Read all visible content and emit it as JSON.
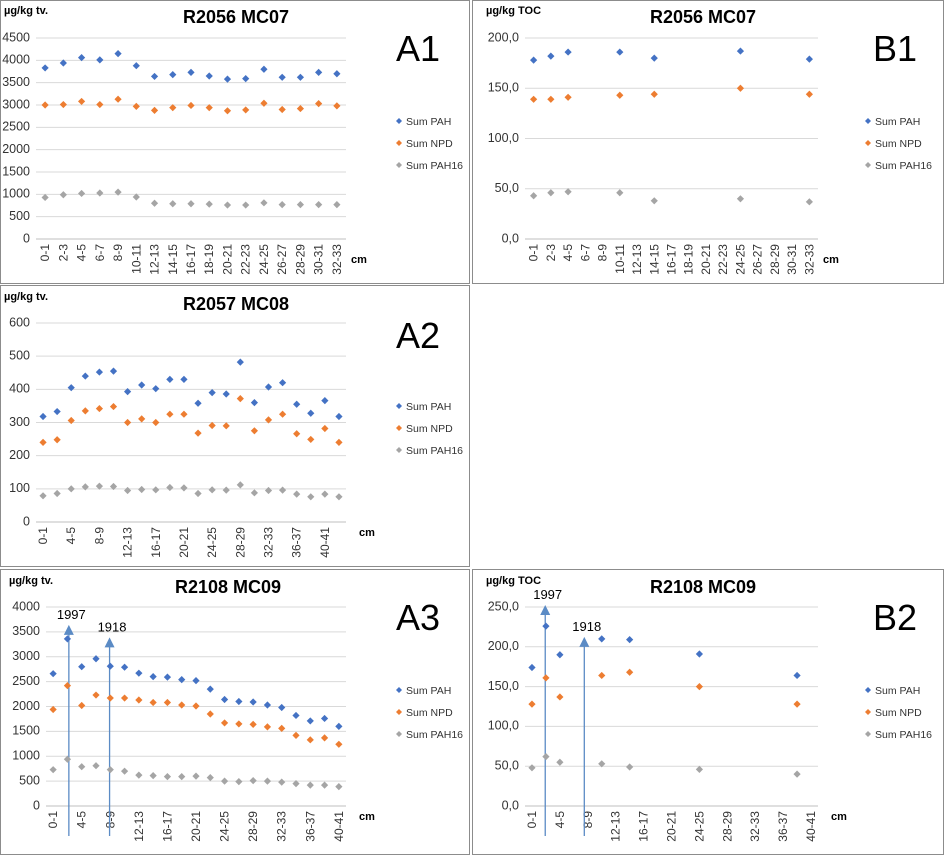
{
  "colors": {
    "pah": "#4472c4",
    "npd": "#ed7d31",
    "pah16": "#a5a5a5",
    "arrow": "#5b8bc5"
  },
  "chart_data": [
    {
      "id": "A1",
      "type": "scatter",
      "panel_label": "A1",
      "title": "R2056 MC07",
      "ylabel": "µg/kg tv.",
      "xlabel": "cm",
      "ylim": [
        0,
        4500
      ],
      "yticks": [
        0,
        500,
        1000,
        1500,
        2000,
        2500,
        3000,
        3500,
        4000,
        4500
      ],
      "x_categories": [
        "0-1",
        "2-3",
        "4-5",
        "6-7",
        "8-9",
        "10-11",
        "12-13",
        "14-15",
        "16-17",
        "18-19",
        "20-21",
        "22-23",
        "24-25",
        "26-27",
        "28-29",
        "30-31",
        "32-33"
      ],
      "x_tick_labels": [
        "0-1",
        "2-3",
        "4-5",
        "6-7",
        "8-9",
        "10-11",
        "12-13",
        "14-15",
        "16-17",
        "18-19",
        "20-21",
        "22-23",
        "24-25",
        "26-27",
        "28-29",
        "30-31",
        "32-33"
      ],
      "series": [
        {
          "name": "Sum PAH",
          "color_key": "pah",
          "values": [
            3830,
            3940,
            4060,
            4010,
            4150,
            3880,
            3640,
            3680,
            3730,
            3650,
            3580,
            3590,
            3800,
            3620,
            3620,
            3730,
            3700
          ]
        },
        {
          "name": "Sum NPD",
          "color_key": "npd",
          "values": [
            3000,
            3010,
            3080,
            3010,
            3130,
            2970,
            2880,
            2940,
            2990,
            2940,
            2870,
            2890,
            3040,
            2900,
            2920,
            3030,
            2980
          ]
        },
        {
          "name": "Sum PAH16",
          "color_key": "pah16",
          "values": [
            930,
            990,
            1020,
            1030,
            1050,
            940,
            800,
            790,
            790,
            780,
            760,
            760,
            810,
            770,
            770,
            770,
            770
          ]
        }
      ]
    },
    {
      "id": "B1",
      "type": "scatter",
      "panel_label": "B1",
      "title": "R2056 MC07",
      "ylabel": "µg/kg TOC",
      "xlabel": "cm",
      "ylim": [
        0,
        200
      ],
      "yticks": [
        0,
        50,
        100,
        150,
        200
      ],
      "ytick_labels": [
        "0,0",
        "50,0",
        "100,0",
        "150,0",
        "200,0"
      ],
      "x_categories": [
        "0-1",
        "2-3",
        "4-5",
        "6-7",
        "8-9",
        "10-11",
        "12-13",
        "14-15",
        "16-17",
        "18-19",
        "20-21",
        "22-23",
        "24-25",
        "26-27",
        "28-29",
        "30-31",
        "32-33"
      ],
      "x_tick_labels": [
        "0-1",
        "2-3",
        "4-5",
        "6-7",
        "8-9",
        "10-11",
        "12-13",
        "14-15",
        "16-17",
        "18-19",
        "20-21",
        "22-23",
        "24-25",
        "26-27",
        "28-29",
        "30-31",
        "32-33"
      ],
      "series": [
        {
          "name": "Sum PAH",
          "color_key": "pah",
          "values": [
            178,
            182,
            186,
            null,
            null,
            186,
            null,
            180,
            null,
            null,
            null,
            null,
            187,
            null,
            null,
            null,
            179
          ]
        },
        {
          "name": "Sum NPD",
          "color_key": "npd",
          "values": [
            139,
            139,
            141,
            null,
            null,
            143,
            null,
            144,
            null,
            null,
            null,
            null,
            150,
            null,
            null,
            null,
            144
          ]
        },
        {
          "name": "Sum PAH16",
          "color_key": "pah16",
          "values": [
            43,
            46,
            47,
            null,
            null,
            46,
            null,
            38,
            null,
            null,
            null,
            null,
            40,
            null,
            null,
            null,
            37
          ]
        }
      ]
    },
    {
      "id": "A2",
      "type": "scatter",
      "panel_label": "A2",
      "title": "R2057 MC08",
      "ylabel": "µg/kg tv.",
      "xlabel": "cm",
      "ylim": [
        0,
        600
      ],
      "yticks": [
        0,
        100,
        200,
        300,
        400,
        500,
        600
      ],
      "x_categories": [
        "0-1",
        "2-3",
        "4-5",
        "6-7",
        "8-9",
        "10-11",
        "12-13",
        "14-15",
        "16-17",
        "18-19",
        "20-21",
        "22-23",
        "24-25",
        "26-27",
        "28-29",
        "30-31",
        "32-33",
        "34-35",
        "36-37",
        "38-39",
        "40-41",
        "42-43"
      ],
      "x_tick_labels": [
        "0-1",
        "",
        "4-5",
        "",
        "8-9",
        "",
        "12-13",
        "",
        "16-17",
        "",
        "20-21",
        "",
        "24-25",
        "",
        "28-29",
        "",
        "32-33",
        "",
        "36-37",
        "",
        "40-41",
        ""
      ],
      "series": [
        {
          "name": "Sum PAH",
          "color_key": "pah",
          "values": [
            318,
            333,
            405,
            440,
            452,
            455,
            393,
            413,
            402,
            430,
            430,
            358,
            390,
            386,
            482,
            360,
            407,
            420,
            355,
            328,
            366,
            318
          ]
        },
        {
          "name": "Sum NPD",
          "color_key": "npd",
          "values": [
            240,
            248,
            306,
            335,
            342,
            348,
            300,
            311,
            300,
            325,
            325,
            268,
            291,
            290,
            372,
            275,
            308,
            325,
            266,
            249,
            282,
            240
          ]
        },
        {
          "name": "Sum PAH16",
          "color_key": "pah16",
          "values": [
            79,
            86,
            100,
            106,
            108,
            107,
            95,
            98,
            97,
            104,
            103,
            86,
            97,
            96,
            112,
            88,
            95,
            96,
            84,
            76,
            84,
            76
          ]
        }
      ]
    },
    {
      "id": "A3",
      "type": "scatter",
      "panel_label": "A3",
      "title": "R2108 MC09",
      "ylabel": "µg/kg tv.",
      "xlabel": "cm",
      "ylim": [
        0,
        4000
      ],
      "yticks": [
        0,
        500,
        1000,
        1500,
        2000,
        2500,
        3000,
        3500,
        4000
      ],
      "x_categories": [
        "0-1",
        "2-3",
        "4-5",
        "6-7",
        "8-9",
        "10-11",
        "12-13",
        "14-15",
        "16-17",
        "18-19",
        "20-21",
        "22-23",
        "24-25",
        "26-27",
        "28-29",
        "30-31",
        "32-33",
        "34-35",
        "36-37",
        "38-39",
        "40-41"
      ],
      "x_tick_labels": [
        "0-1",
        "",
        "4-5",
        "",
        "8-9",
        "",
        "12-13",
        "",
        "16-17",
        "",
        "20-21",
        "",
        "24-25",
        "",
        "28-29",
        "",
        "32-33",
        "",
        "36-37",
        "",
        "40-41"
      ],
      "series": [
        {
          "name": "Sum PAH",
          "color_key": "pah",
          "values": [
            2660,
            3360,
            2800,
            2960,
            2810,
            2790,
            2670,
            2600,
            2590,
            2540,
            2520,
            2350,
            2140,
            2100,
            2090,
            2030,
            1980,
            1820,
            1710,
            1760,
            1600
          ]
        },
        {
          "name": "Sum NPD",
          "color_key": "npd",
          "values": [
            1940,
            2420,
            2020,
            2230,
            2170,
            2170,
            2130,
            2080,
            2080,
            2030,
            2010,
            1850,
            1670,
            1650,
            1640,
            1590,
            1560,
            1420,
            1330,
            1370,
            1240
          ]
        },
        {
          "name": "Sum PAH16",
          "color_key": "pah16",
          "values": [
            730,
            940,
            790,
            810,
            730,
            700,
            620,
            610,
            590,
            590,
            600,
            570,
            500,
            490,
            510,
            500,
            480,
            450,
            420,
            420,
            390
          ]
        }
      ],
      "annotations": [
        {
          "text": "1997",
          "category_index": 1.1,
          "y_top": 3600
        },
        {
          "text": "1918",
          "category_index": 3.95,
          "y_top": 3350
        }
      ]
    },
    {
      "id": "B2",
      "type": "scatter",
      "panel_label": "B2",
      "title": "R2108 MC09",
      "ylabel": "µg/kg TOC",
      "xlabel": "cm",
      "ylim": [
        0,
        250
      ],
      "yticks": [
        0,
        50,
        100,
        150,
        200,
        250
      ],
      "ytick_labels": [
        "0,0",
        "50,0",
        "100,0",
        "150,0",
        "200,0",
        "250,0"
      ],
      "x_categories": [
        "0-1",
        "2-3",
        "4-5",
        "6-7",
        "8-9",
        "10-11",
        "12-13",
        "14-15",
        "16-17",
        "18-19",
        "20-21",
        "22-23",
        "24-25",
        "26-27",
        "28-29",
        "30-31",
        "32-33",
        "34-35",
        "36-37",
        "38-39",
        "40-41"
      ],
      "x_tick_labels": [
        "0-1",
        "",
        "4-5",
        "",
        "8-9",
        "",
        "12-13",
        "",
        "16-17",
        "",
        "20-21",
        "",
        "24-25",
        "",
        "28-29",
        "",
        "32-33",
        "",
        "36-37",
        "",
        "40-41"
      ],
      "series": [
        {
          "name": "Sum PAH",
          "color_key": "pah",
          "values": [
            174,
            226,
            190,
            null,
            null,
            210,
            null,
            209,
            null,
            null,
            null,
            null,
            191,
            null,
            null,
            null,
            null,
            null,
            null,
            164,
            null
          ]
        },
        {
          "name": "Sum NPD",
          "color_key": "npd",
          "values": [
            128,
            161,
            137,
            null,
            null,
            164,
            null,
            168,
            null,
            null,
            null,
            null,
            150,
            null,
            null,
            null,
            null,
            null,
            null,
            128,
            null
          ]
        },
        {
          "name": "Sum PAH16",
          "color_key": "pah16",
          "values": [
            48,
            62,
            55,
            null,
            null,
            53,
            null,
            49,
            null,
            null,
            null,
            null,
            46,
            null,
            null,
            null,
            null,
            null,
            null,
            40,
            null
          ]
        }
      ],
      "annotations": [
        {
          "text": "1997",
          "category_index": 0.95,
          "y_top": 250
        },
        {
          "text": "1918",
          "category_index": 3.75,
          "y_top": 210
        }
      ]
    }
  ]
}
